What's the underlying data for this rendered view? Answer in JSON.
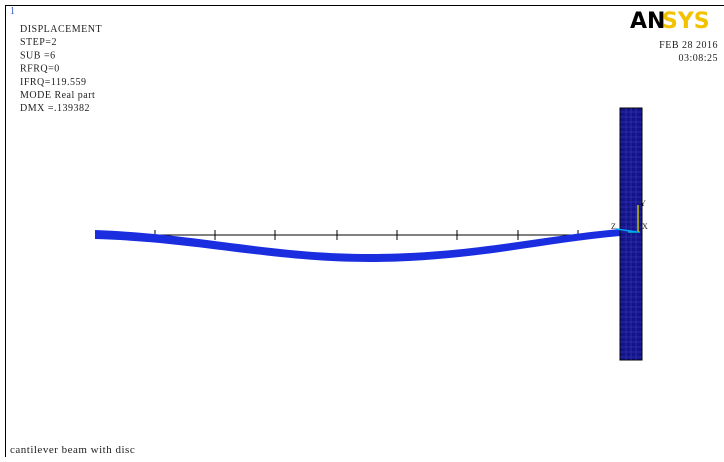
{
  "window_number": "1",
  "info": [
    "DISPLACEMENT",
    "STEP=2",
    "SUB =6",
    "RFRQ=0",
    "IFRQ=119.559",
    "MODE Real part",
    "DMX =.139382"
  ],
  "logo": [
    "AN",
    "SYS"
  ],
  "date": "FEB 28 2016",
  "time": "03:08:25",
  "triad": {
    "y": "Y",
    "z": "Z",
    "x": "X"
  },
  "caption": "cantilever beam with disc"
}
